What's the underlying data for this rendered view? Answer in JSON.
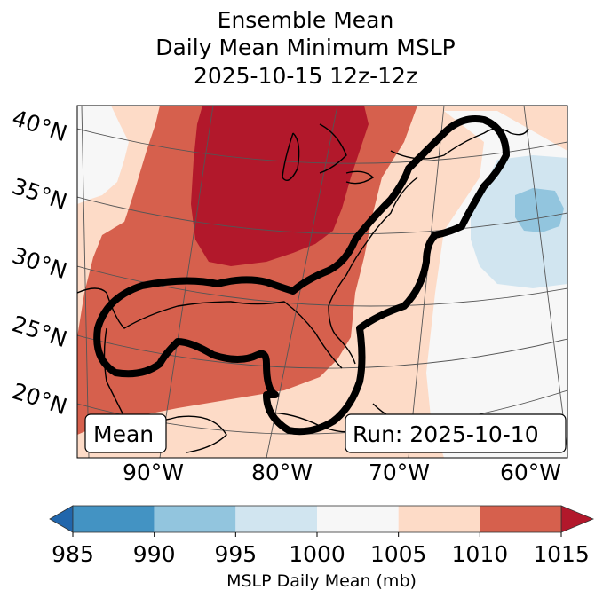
{
  "title": {
    "line1": "Ensemble Mean",
    "line2": "Daily Mean Minimum MSLP",
    "line3": "2025-10-15 12z-12z"
  },
  "map": {
    "lat_labels": [
      "40°N",
      "35°N",
      "30°N",
      "25°N",
      "20°N"
    ],
    "lon_labels": [
      "90°W",
      "80°W",
      "70°W",
      "60°W"
    ],
    "left_box": "Mean",
    "right_box": "Run: 2025-10-10",
    "contour_color": "#000000"
  },
  "colorbar": {
    "ticks": [
      "985",
      "990",
      "995",
      "1000",
      "1005",
      "1010",
      "1015"
    ],
    "label": "MSLP Daily Mean (mb)",
    "under_color": "#2166ac",
    "over_color": "#b2182b",
    "bins": [
      {
        "from": 985,
        "to": 990,
        "color": "#4393c3"
      },
      {
        "from": 990,
        "to": 995,
        "color": "#92c5de"
      },
      {
        "from": 995,
        "to": 1000,
        "color": "#d1e5f0"
      },
      {
        "from": 1000,
        "to": 1005,
        "color": "#f7f7f7"
      },
      {
        "from": 1005,
        "to": 1010,
        "color": "#fddbc7"
      },
      {
        "from": 1010,
        "to": 1015,
        "color": "#d6604d"
      }
    ]
  }
}
